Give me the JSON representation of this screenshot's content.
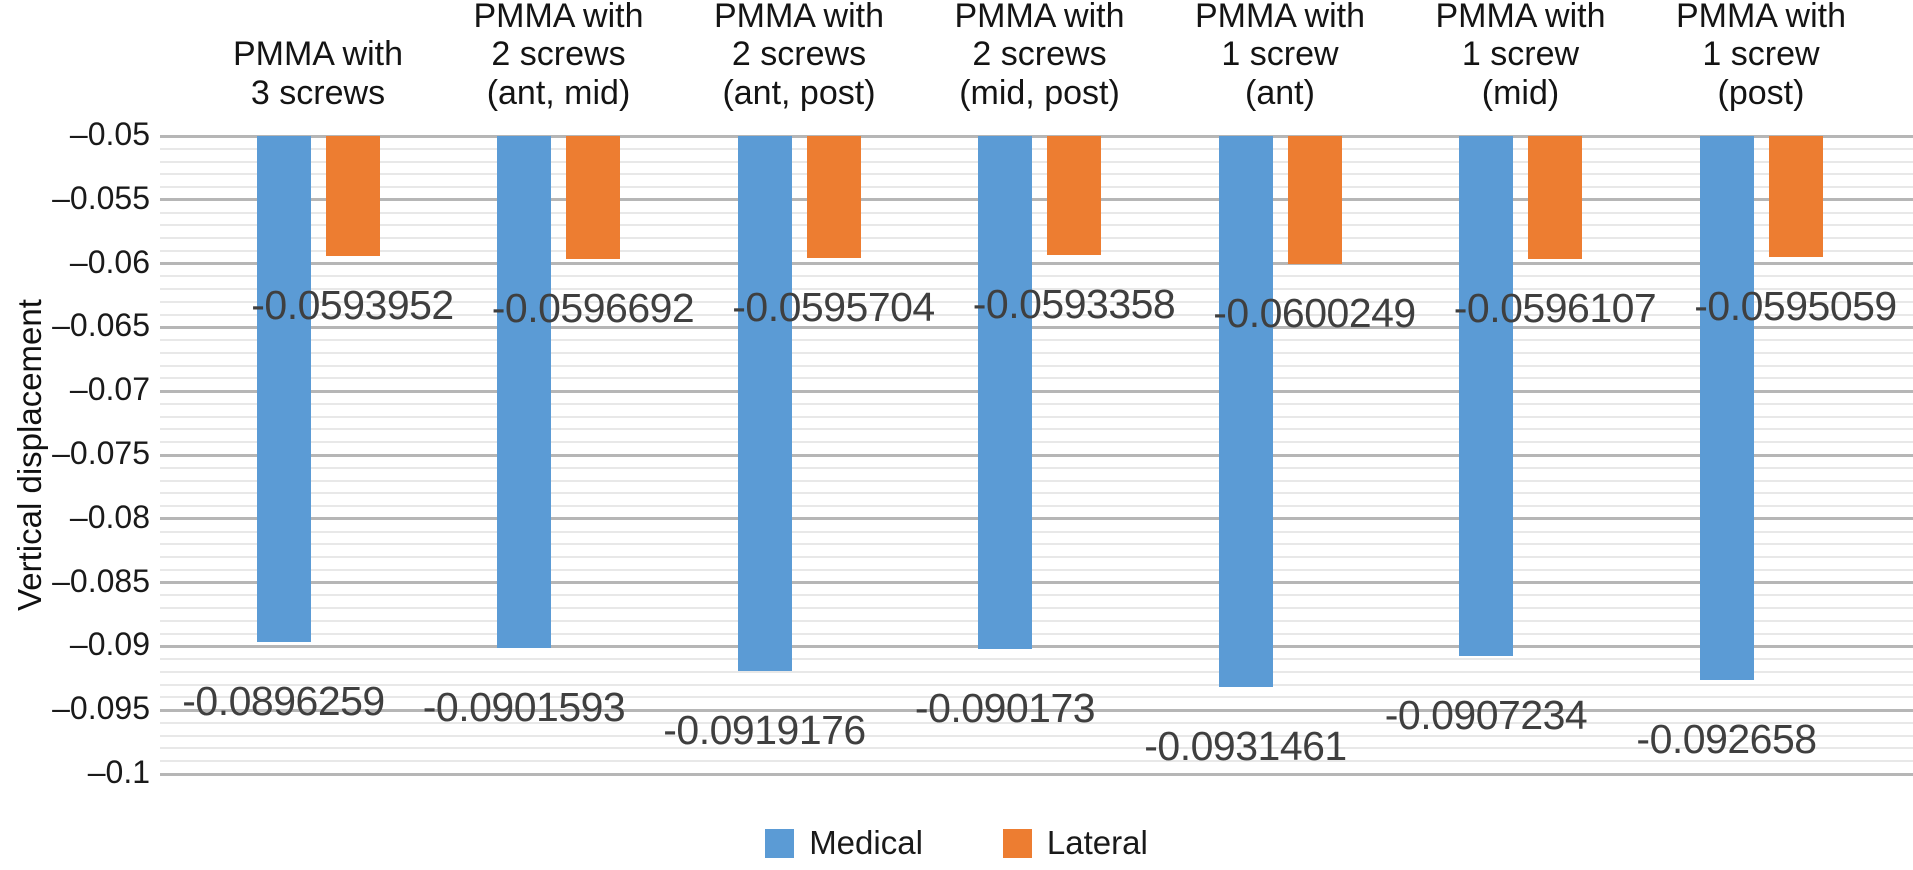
{
  "chart_data": {
    "type": "bar",
    "title": "",
    "ylabel": "Vertical displacement",
    "categories": [
      "PMMA with\n3 screws",
      "PMMA with\n2 screws\n(ant, mid)",
      "PMMA with\n2 screws\n(ant, post)",
      "PMMA with\n2 screws\n(mid, post)",
      "PMMA with\n1 screw\n(ant)",
      "PMMA with\n1 screw\n(mid)",
      "PMMA with\n1 screw\n(post)"
    ],
    "series": [
      {
        "name": "Medical",
        "color": "#5B9BD5",
        "values": [
          -0.0896259,
          -0.0901593,
          -0.0919176,
          -0.090173,
          -0.0931461,
          -0.0907234,
          -0.092658
        ],
        "data_labels": [
          "-0.0896259",
          "-0.0901593",
          "-0.0919176",
          "-0.090173",
          "-0.0931461",
          "-0.0907234",
          "-0.092658"
        ]
      },
      {
        "name": "Lateral",
        "color": "#ED7D31",
        "values": [
          -0.0593952,
          -0.0596692,
          -0.0595704,
          -0.0593358,
          -0.0600249,
          -0.0596107,
          -0.0595059
        ],
        "data_labels": [
          "-0.0593952",
          "-0.0596692",
          "-0.0595704",
          "-0.0593358",
          "-0.0600249",
          "-0.0596107",
          "-0.0595059"
        ]
      }
    ],
    "y_axis": {
      "max": -0.05,
      "min": -0.1,
      "major_step": 0.005,
      "minor_step": 0.001,
      "tick_labels": [
        "–0.05",
        "–0.055",
        "–0.06",
        "–0.065",
        "–0.07",
        "–0.075",
        "–0.08",
        "–0.085",
        "–0.09",
        "–0.095",
        "–0.1"
      ]
    },
    "legend": {
      "position": "bottom",
      "entries": [
        "Medical",
        "Lateral"
      ]
    },
    "grid": {
      "major_color": "#b6b6b6",
      "minor_color": "#e8e8e8"
    },
    "data_label_color": "#3f3f3f"
  }
}
